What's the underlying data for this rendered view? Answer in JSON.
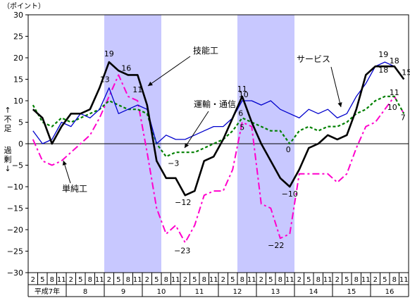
{
  "chart_data": {
    "type": "line",
    "y_unit_label": "（ポイント）",
    "y_axis_label_upper": "↑不足",
    "y_axis_label_lower": "過剰↓",
    "ylim": [
      -30,
      30
    ],
    "y_ticks": [
      30,
      25,
      20,
      15,
      10,
      5,
      0,
      -5,
      -10,
      -15,
      -20,
      -25,
      -30
    ],
    "quarter_labels": [
      "2",
      "5",
      "8",
      "11",
      "2",
      "5",
      "8",
      "11",
      "2",
      "5",
      "8",
      "11",
      "2",
      "5",
      "8",
      "11",
      "2",
      "5",
      "8",
      "11",
      "2",
      "5",
      "8",
      "11",
      "2",
      "5",
      "8",
      "11",
      "2",
      "5",
      "8",
      "11",
      "2",
      "5",
      "8",
      "11",
      "2",
      "5",
      "8",
      "11"
    ],
    "year_labels": [
      "平成7年",
      "8",
      "9",
      "10",
      "11",
      "12",
      "13",
      "14",
      "15",
      "16"
    ],
    "shaded_periods": [
      [
        8,
        14
      ],
      [
        22,
        28
      ]
    ],
    "grid": "horizontal zero line only",
    "series": [
      {
        "name": "技能工",
        "color": "#000000",
        "style": "solid-thick",
        "values": [
          8,
          6,
          0,
          4,
          7,
          7,
          8,
          13,
          19,
          17,
          16,
          16,
          9,
          -4,
          -8,
          -8,
          -12,
          -11,
          -4,
          -3,
          1,
          6,
          11,
          5,
          0,
          -4,
          -8,
          -10,
          -6,
          -1,
          0,
          2,
          1,
          2,
          8,
          16,
          18,
          18,
          18,
          15
        ]
      },
      {
        "name": "サービス",
        "color": "#0000cc",
        "style": "solid",
        "values": [
          3,
          0,
          1,
          5,
          4,
          7,
          6,
          8,
          13,
          7,
          8,
          9,
          8,
          0,
          2,
          1,
          1,
          2,
          3,
          4,
          4,
          6,
          10,
          10,
          9,
          10,
          8,
          7,
          6,
          8,
          7,
          8,
          6,
          7,
          11,
          14,
          18,
          19,
          18,
          15
        ]
      },
      {
        "name": "運輸・通信",
        "color": "#008000",
        "style": "dashed",
        "values": [
          9,
          5,
          4,
          6,
          5,
          6,
          7,
          8,
          10,
          9,
          8,
          8,
          7,
          0,
          -3,
          -2,
          -2,
          -2,
          -1,
          0,
          1,
          3,
          6,
          5,
          4,
          3,
          3,
          0,
          3,
          4,
          3,
          4,
          4,
          5,
          7,
          8,
          10,
          11,
          11,
          7
        ]
      },
      {
        "name": "単純工",
        "color": "#ff00cc",
        "style": "dash-dot",
        "values": [
          1,
          -4,
          -5,
          -4,
          -2,
          0,
          2,
          6,
          11,
          16,
          11,
          10,
          -2,
          -15,
          -21,
          -19,
          -23,
          -19,
          -12,
          -11,
          -11,
          -6,
          5,
          4,
          -14,
          -15,
          -22,
          -21,
          -7,
          -7,
          -7,
          -7,
          -9,
          -7,
          -1,
          4,
          5,
          8,
          11,
          7
        ]
      }
    ],
    "annotations": [
      {
        "text": "技能工",
        "series": "技能工"
      },
      {
        "text": "サービス",
        "series": "サービス"
      },
      {
        "text": "運輸・通信",
        "series": "運輸・通信"
      },
      {
        "text": "単純工",
        "series": "単純工"
      }
    ],
    "data_labels": [
      {
        "text": "19",
        "x_index": 8,
        "value": 19
      },
      {
        "text": "13",
        "x_index": 8,
        "value": 13
      },
      {
        "text": "16",
        "x_index": 9,
        "value": 16
      },
      {
        "text": "11",
        "x_index": 11,
        "value": 11
      },
      {
        "text": "−3",
        "x_index": 15,
        "value": -3
      },
      {
        "text": "−12",
        "x_index": 16,
        "value": -12
      },
      {
        "text": "−23",
        "x_index": 16,
        "value": -23
      },
      {
        "text": "11",
        "x_index": 22,
        "value": 11
      },
      {
        "text": "10",
        "x_index": 22,
        "value": 10
      },
      {
        "text": "6",
        "x_index": 22,
        "value": 6
      },
      {
        "text": "5",
        "x_index": 22,
        "value": 5
      },
      {
        "text": "0",
        "x_index": 27,
        "value": 0
      },
      {
        "text": "−10",
        "x_index": 27,
        "value": -10
      },
      {
        "text": "−22",
        "x_index": 26,
        "value": -22
      },
      {
        "text": "19",
        "x_index": 37,
        "value": 19
      },
      {
        "text": "18",
        "x_index": 38,
        "value": 18
      },
      {
        "text": "18",
        "x_index": 37,
        "value": 18
      },
      {
        "text": "15",
        "x_index": 39,
        "value": 15
      },
      {
        "text": "11",
        "x_index": 38,
        "value": 11
      },
      {
        "text": "10",
        "x_index": 38,
        "value": 10
      },
      {
        "text": "7",
        "x_index": 39,
        "value": 7
      }
    ]
  }
}
